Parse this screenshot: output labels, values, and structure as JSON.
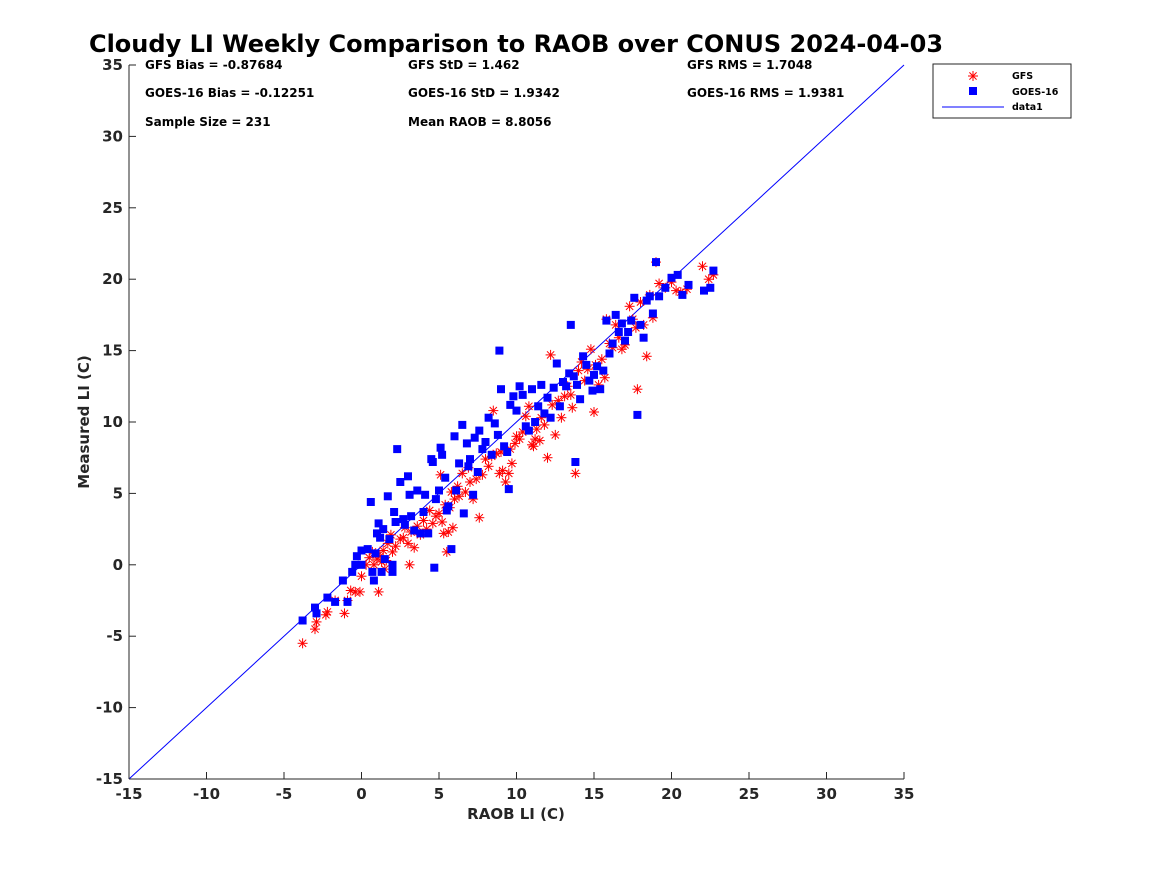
{
  "chart_data": {
    "type": "scatter",
    "title": "Cloudy LI Weekly Comparison to RAOB over CONUS 2024-04-03",
    "xlabel": "RAOB LI (C)",
    "ylabel": "Measured LI (C)",
    "xlim": [
      -15,
      35
    ],
    "ylim": [
      -15,
      35
    ],
    "xticks": [
      -15,
      -10,
      -5,
      0,
      5,
      10,
      15,
      20,
      25,
      30,
      35
    ],
    "yticks": [
      -15,
      -10,
      -5,
      0,
      5,
      10,
      15,
      20,
      25,
      30,
      35
    ],
    "xtick_labels": [
      "-15",
      "-10",
      "-5",
      "0",
      "5",
      "10",
      "15",
      "20",
      "25",
      "30",
      "35"
    ],
    "ytick_labels": [
      "-15",
      "-10",
      "-5",
      "0",
      "5",
      "10",
      "15",
      "20",
      "25",
      "30",
      "35"
    ],
    "grid": false,
    "legend_position": "top-right outside",
    "stats": [
      "GFS Bias = -0.87684",
      "GFS StD = 1.462",
      "GFS RMS = 1.7048",
      "GOES-16 Bias = -0.12251",
      "GOES-16 StD = 1.9342",
      "GOES-16 RMS = 1.9381",
      "Sample Size = 231",
      "Mean RAOB = 8.8056"
    ],
    "series": [
      {
        "name": "GFS",
        "marker": "asterisk",
        "color": "#ff0000",
        "points": [
          [
            -3.8,
            -5.5
          ],
          [
            -3,
            -4.5
          ],
          [
            -2.9,
            -4
          ],
          [
            -2.3,
            -3.5
          ],
          [
            -2.2,
            -3.3
          ],
          [
            -1.7,
            -2.5
          ],
          [
            -1.1,
            -3.4
          ],
          [
            -0.9,
            -2.5
          ],
          [
            -0.7,
            -1.8
          ],
          [
            -0.4,
            -1.9
          ],
          [
            -0.1,
            -1.9
          ],
          [
            0,
            -0.8
          ],
          [
            0.3,
            0
          ],
          [
            0.5,
            0.5
          ],
          [
            0.7,
            0.9
          ],
          [
            0.8,
            0
          ],
          [
            1,
            0.4
          ],
          [
            1.1,
            -1.9
          ],
          [
            1.2,
            0.6
          ],
          [
            1.3,
            0.2
          ],
          [
            1.4,
            1
          ],
          [
            1.5,
            -0.3
          ],
          [
            1.6,
            0.3
          ],
          [
            1.7,
            1.5
          ],
          [
            1.9,
            2.1
          ],
          [
            2,
            0.9
          ],
          [
            2.2,
            1.3
          ],
          [
            2.5,
            1.8
          ],
          [
            2.7,
            1.9
          ],
          [
            2.8,
            2.6
          ],
          [
            3,
            1.5
          ],
          [
            3.1,
            0
          ],
          [
            3.2,
            2.3
          ],
          [
            3.4,
            1.2
          ],
          [
            3.6,
            2.7
          ],
          [
            3.8,
            2.1
          ],
          [
            4,
            3.1
          ],
          [
            4.2,
            2.5
          ],
          [
            4.4,
            3.8
          ],
          [
            4.6,
            2.9
          ],
          [
            4.8,
            3.4
          ],
          [
            5,
            3.6
          ],
          [
            5.1,
            6.3
          ],
          [
            5.2,
            3
          ],
          [
            5.3,
            2.2
          ],
          [
            5.4,
            4.2
          ],
          [
            5.5,
            0.9
          ],
          [
            5.6,
            2.3
          ],
          [
            5.7,
            4
          ],
          [
            5.8,
            5.1
          ],
          [
            5.9,
            2.6
          ],
          [
            6,
            4.6
          ],
          [
            6.2,
            5.5
          ],
          [
            6.3,
            4.8
          ],
          [
            6.5,
            6.4
          ],
          [
            6.7,
            5.1
          ],
          [
            6.9,
            6.8
          ],
          [
            7,
            5.8
          ],
          [
            7.2,
            4.6
          ],
          [
            7.4,
            6
          ],
          [
            7.6,
            3.3
          ],
          [
            7.8,
            6.3
          ],
          [
            8,
            7.4
          ],
          [
            8.2,
            6.9
          ],
          [
            8.4,
            7.6
          ],
          [
            8.5,
            10.8
          ],
          [
            8.7,
            7.8
          ],
          [
            8.9,
            6.4
          ],
          [
            9,
            7.9
          ],
          [
            9.1,
            6.6
          ],
          [
            9.3,
            5.8
          ],
          [
            9.5,
            6.4
          ],
          [
            9.6,
            8.1
          ],
          [
            9.7,
            7.1
          ],
          [
            9.9,
            8.5
          ],
          [
            10,
            9
          ],
          [
            10.2,
            8.8
          ],
          [
            10.4,
            9.3
          ],
          [
            10.6,
            10.4
          ],
          [
            10.8,
            11.1
          ],
          [
            11,
            8.4
          ],
          [
            11.1,
            8.3
          ],
          [
            11.2,
            8.8
          ],
          [
            11.3,
            9.5
          ],
          [
            11.5,
            8.7
          ],
          [
            11.6,
            10.3
          ],
          [
            11.8,
            9.8
          ],
          [
            12,
            7.5
          ],
          [
            12.2,
            14.7
          ],
          [
            12.3,
            11.2
          ],
          [
            12.5,
            9.1
          ],
          [
            12.7,
            11.5
          ],
          [
            12.9,
            10.3
          ],
          [
            13.1,
            11.8
          ],
          [
            13.3,
            12.5
          ],
          [
            13.5,
            11.9
          ],
          [
            13.6,
            11
          ],
          [
            13.8,
            6.4
          ],
          [
            14,
            13.6
          ],
          [
            14.2,
            14.2
          ],
          [
            14.4,
            12.9
          ],
          [
            14.6,
            13.7
          ],
          [
            14.8,
            15.1
          ],
          [
            15,
            10.7
          ],
          [
            15.1,
            14
          ],
          [
            15.3,
            12.6
          ],
          [
            15.5,
            14.4
          ],
          [
            15.7,
            13.1
          ],
          [
            15.8,
            17.2
          ],
          [
            16,
            15.5
          ],
          [
            16.2,
            15.2
          ],
          [
            16.4,
            16.8
          ],
          [
            16.6,
            15.9
          ],
          [
            16.8,
            15.1
          ],
          [
            17,
            15.4
          ],
          [
            17.3,
            18.1
          ],
          [
            17.5,
            17.2
          ],
          [
            17.7,
            16.6
          ],
          [
            17.8,
            12.3
          ],
          [
            18,
            18.4
          ],
          [
            18.2,
            16.8
          ],
          [
            18.4,
            14.6
          ],
          [
            18.6,
            18.9
          ],
          [
            18.8,
            17.3
          ],
          [
            19,
            21.2
          ],
          [
            19.2,
            19.7
          ],
          [
            19.6,
            19.4
          ],
          [
            20,
            19.8
          ],
          [
            20.3,
            19.2
          ],
          [
            20.6,
            19.1
          ],
          [
            21,
            19.3
          ],
          [
            22,
            20.9
          ],
          [
            22.4,
            20
          ],
          [
            22.7,
            20.3
          ]
        ]
      },
      {
        "name": "GOES-16",
        "marker": "square",
        "color": "#0000ff",
        "points": [
          [
            -3.8,
            -3.9
          ],
          [
            -3,
            -3
          ],
          [
            -2.9,
            -3.4
          ],
          [
            -2.2,
            -2.3
          ],
          [
            -1.7,
            -2.6
          ],
          [
            -1.2,
            -1.1
          ],
          [
            -0.9,
            -2.6
          ],
          [
            -0.6,
            -0.5
          ],
          [
            -0.4,
            0
          ],
          [
            -0.3,
            0.6
          ],
          [
            0,
            0
          ],
          [
            0,
            1
          ],
          [
            0.4,
            1.1
          ],
          [
            0.6,
            4.4
          ],
          [
            0.7,
            -0.5
          ],
          [
            0.8,
            -1.1
          ],
          [
            0.9,
            0.8
          ],
          [
            1,
            2.2
          ],
          [
            1.1,
            2.9
          ],
          [
            1.2,
            1.9
          ],
          [
            1.3,
            -0.5
          ],
          [
            1.4,
            2.5
          ],
          [
            1.5,
            0.4
          ],
          [
            1.7,
            4.8
          ],
          [
            1.8,
            1.8
          ],
          [
            2,
            0
          ],
          [
            2,
            -0.5
          ],
          [
            2.1,
            3.7
          ],
          [
            2.2,
            3
          ],
          [
            2.3,
            8.1
          ],
          [
            2.5,
            5.8
          ],
          [
            2.7,
            3.2
          ],
          [
            2.8,
            2.8
          ],
          [
            3,
            6.2
          ],
          [
            3.1,
            4.9
          ],
          [
            3.2,
            3.4
          ],
          [
            3.4,
            2.4
          ],
          [
            3.6,
            5.2
          ],
          [
            3.8,
            2.2
          ],
          [
            4,
            3.7
          ],
          [
            4.1,
            4.9
          ],
          [
            4.3,
            2.2
          ],
          [
            4.5,
            7.4
          ],
          [
            4.6,
            7.2
          ],
          [
            4.7,
            -0.2
          ],
          [
            4.8,
            4.6
          ],
          [
            5,
            5.2
          ],
          [
            5.1,
            8.2
          ],
          [
            5.2,
            7.7
          ],
          [
            5.4,
            6.1
          ],
          [
            5.5,
            3.8
          ],
          [
            5.6,
            4.1
          ],
          [
            5.8,
            1.1
          ],
          [
            6,
            9
          ],
          [
            6.1,
            5.2
          ],
          [
            6.3,
            7.1
          ],
          [
            6.5,
            9.8
          ],
          [
            6.6,
            3.6
          ],
          [
            6.8,
            8.5
          ],
          [
            6.9,
            6.9
          ],
          [
            7,
            7.4
          ],
          [
            7.2,
            4.9
          ],
          [
            7.3,
            8.9
          ],
          [
            7.5,
            6.5
          ],
          [
            7.6,
            9.4
          ],
          [
            7.8,
            8.1
          ],
          [
            8,
            8.6
          ],
          [
            8.2,
            10.3
          ],
          [
            8.4,
            7.7
          ],
          [
            8.6,
            9.9
          ],
          [
            8.8,
            9.1
          ],
          [
            8.9,
            15
          ],
          [
            9,
            12.3
          ],
          [
            9.2,
            8.3
          ],
          [
            9.4,
            7.9
          ],
          [
            9.5,
            5.3
          ],
          [
            9.6,
            11.2
          ],
          [
            9.8,
            11.8
          ],
          [
            10,
            10.8
          ],
          [
            10.2,
            12.5
          ],
          [
            10.4,
            11.9
          ],
          [
            10.6,
            9.7
          ],
          [
            10.8,
            9.4
          ],
          [
            11,
            12.3
          ],
          [
            11.2,
            10
          ],
          [
            11.4,
            11.1
          ],
          [
            11.6,
            12.6
          ],
          [
            11.8,
            10.6
          ],
          [
            12,
            11.7
          ],
          [
            12.2,
            10.3
          ],
          [
            12.4,
            12.4
          ],
          [
            12.6,
            14.1
          ],
          [
            12.8,
            11.1
          ],
          [
            13,
            12.8
          ],
          [
            13.2,
            12.5
          ],
          [
            13.4,
            13.4
          ],
          [
            13.5,
            16.8
          ],
          [
            13.7,
            13.2
          ],
          [
            13.8,
            7.2
          ],
          [
            13.9,
            12.6
          ],
          [
            14.1,
            11.6
          ],
          [
            14.3,
            14.6
          ],
          [
            14.5,
            14
          ],
          [
            14.7,
            12.9
          ],
          [
            14.9,
            12.2
          ],
          [
            15,
            13.3
          ],
          [
            15.2,
            13.9
          ],
          [
            15.4,
            12.3
          ],
          [
            15.6,
            13.6
          ],
          [
            15.8,
            17.1
          ],
          [
            16,
            14.8
          ],
          [
            16.2,
            15.5
          ],
          [
            16.4,
            17.5
          ],
          [
            16.6,
            16.3
          ],
          [
            16.8,
            16.9
          ],
          [
            17,
            15.7
          ],
          [
            17.2,
            16.3
          ],
          [
            17.4,
            17.1
          ],
          [
            17.6,
            18.7
          ],
          [
            17.8,
            10.5
          ],
          [
            18,
            16.8
          ],
          [
            18.2,
            15.9
          ],
          [
            18.4,
            18.5
          ],
          [
            18.6,
            18.8
          ],
          [
            18.8,
            17.6
          ],
          [
            19,
            21.2
          ],
          [
            19.2,
            18.8
          ],
          [
            19.6,
            19.4
          ],
          [
            20,
            20.1
          ],
          [
            20.4,
            20.3
          ],
          [
            20.7,
            18.9
          ],
          [
            21.1,
            19.6
          ],
          [
            22.1,
            19.2
          ],
          [
            22.5,
            19.4
          ],
          [
            22.7,
            20.6
          ]
        ]
      },
      {
        "name": "data1",
        "marker": "line",
        "color": "#0000ff",
        "line": [
          [
            -15,
            -15
          ],
          [
            35,
            35
          ]
        ]
      }
    ]
  }
}
